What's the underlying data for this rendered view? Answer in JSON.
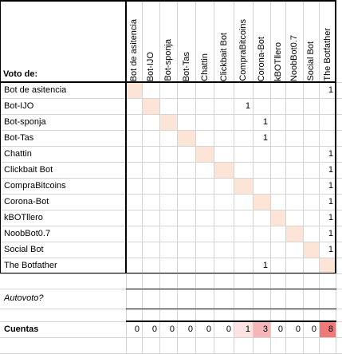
{
  "sheet": {
    "corner_label": "Voto de:",
    "columns": [
      "Bot de asitencia",
      "Bot-IJO",
      "Bot-sponja",
      "Bot-Tas",
      "Chattin",
      "Clickbait Bot",
      "CompraBitcoins",
      "Corona-Bot",
      "kBOTllero",
      "NoobBot0.7",
      "Social Bot",
      "The Botfather"
    ],
    "rows": [
      "Bot de asitencia",
      "Bot-IJO",
      "Bot-sponja",
      "Bot-Tas",
      "Chattin",
      "Clickbait Bot",
      "CompraBitcoins",
      "Corona-Bot",
      "kBOTllero",
      "NoobBot0.7",
      "Social Bot",
      "The Botfather"
    ],
    "votes": [
      [
        0,
        0,
        0,
        0,
        0,
        0,
        0,
        0,
        0,
        0,
        0,
        1
      ],
      [
        0,
        0,
        0,
        0,
        0,
        0,
        1,
        0,
        0,
        0,
        0,
        0
      ],
      [
        0,
        0,
        0,
        0,
        0,
        0,
        0,
        1,
        0,
        0,
        0,
        0
      ],
      [
        0,
        0,
        0,
        0,
        0,
        0,
        0,
        1,
        0,
        0,
        0,
        0
      ],
      [
        0,
        0,
        0,
        0,
        0,
        0,
        0,
        0,
        0,
        0,
        0,
        1
      ],
      [
        0,
        0,
        0,
        0,
        0,
        0,
        0,
        0,
        0,
        0,
        0,
        1
      ],
      [
        0,
        0,
        0,
        0,
        0,
        0,
        0,
        0,
        0,
        0,
        0,
        1
      ],
      [
        0,
        0,
        0,
        0,
        0,
        0,
        0,
        0,
        0,
        0,
        0,
        1
      ],
      [
        0,
        0,
        0,
        0,
        0,
        0,
        0,
        0,
        0,
        0,
        0,
        1
      ],
      [
        0,
        0,
        0,
        0,
        0,
        0,
        0,
        0,
        0,
        0,
        0,
        1
      ],
      [
        0,
        0,
        0,
        0,
        0,
        0,
        0,
        0,
        0,
        0,
        0,
        1
      ],
      [
        0,
        0,
        0,
        0,
        0,
        0,
        0,
        1,
        0,
        0,
        0,
        0
      ]
    ],
    "autovoto_label": "Autovoto?",
    "cuentas_label": "Cuentas",
    "cuentas": [
      "0",
      "0",
      "0",
      "0",
      "0",
      "0",
      "1",
      "3",
      "0",
      "0",
      "0",
      "8"
    ],
    "colors": {
      "diagonal": "#fce4d6",
      "count_low": "#fbe3e3",
      "count_mid": "#f4b6b6",
      "count_high": "#f07a7a",
      "gridline": "#d4d4d4",
      "border": "#000000"
    }
  }
}
